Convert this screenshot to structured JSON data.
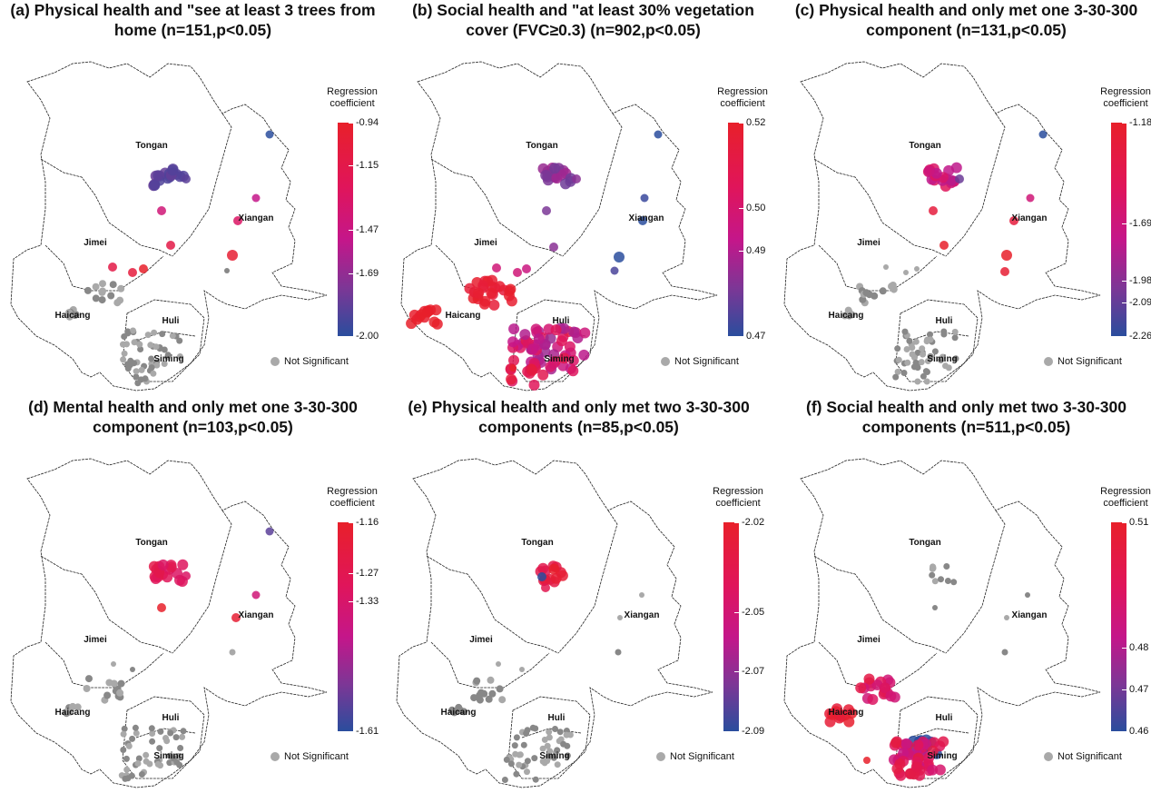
{
  "legend_title": "Regression coefficient",
  "not_significant_label": "Not Significant",
  "districts": [
    "Tongan",
    "Xiangan",
    "Jimei",
    "Haicang",
    "Huli",
    "Siming"
  ],
  "colors": {
    "high": "#e8202a",
    "mid": "#c4168a",
    "low": "#2a4d9d",
    "not_significant": "#a9a9a9"
  },
  "panels": [
    {
      "title": "(a) Physical health and \"see at least 3 trees from home (n=151,p<0.05)",
      "scale": {
        "max": -0.94,
        "min": -2.0
      },
      "ticks": [
        "-0.94",
        "-1.15",
        "-1.47",
        "-1.69",
        "-2.00"
      ]
    },
    {
      "title": "(b) Social health and \"at least 30% vegetation cover (FVC≥0.3) (n=902,p<0.05)",
      "scale": {
        "max": 0.52,
        "min": 0.47
      },
      "ticks": [
        "0.52",
        "0.50",
        "0.49",
        "0.47"
      ]
    },
    {
      "title": "(c) Physical health and only met one 3-30-300 component (n=131,p<0.05)",
      "scale": {
        "max": -1.18,
        "min": -2.26
      },
      "ticks": [
        "-1.18",
        "-1.69",
        "-1.98",
        "-2.09",
        "-2.26"
      ]
    },
    {
      "title": "(d) Mental health and only met one 3-30-300 component (n=103,p<0.05)",
      "scale": {
        "max": -1.16,
        "min": -1.61
      },
      "ticks": [
        "-1.16",
        "-1.27",
        "-1.33",
        "-1.61"
      ]
    },
    {
      "title": "(e) Physical health and only met two 3-30-300 components (n=85,p<0.05)",
      "scale": {
        "max": -2.02,
        "min": -2.09
      },
      "ticks": [
        "-2.02",
        "-2.05",
        "-2.07",
        "-2.09"
      ]
    },
    {
      "title": "(f) Social health and only met two 3-30-300 components (n=511,p<0.05)",
      "scale": {
        "max": 0.51,
        "min": 0.46
      },
      "ticks": [
        "0.51",
        "0.48",
        "0.47",
        "0.46"
      ]
    }
  ]
}
